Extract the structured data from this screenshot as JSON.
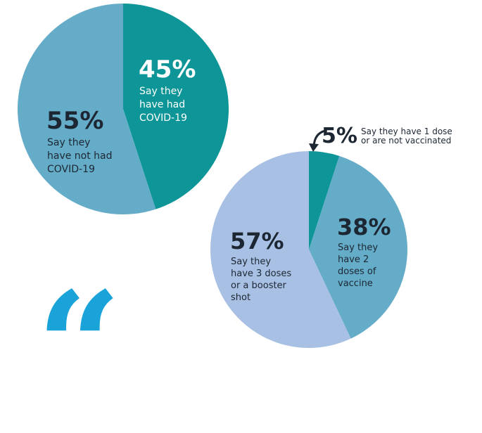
{
  "chart_data": [
    {
      "type": "pie",
      "slices": [
        {
          "label": "Say they have had COVID-19",
          "value": 45,
          "pct_text": "45%",
          "caption_lines": [
            "Say they",
            "have had",
            "COVID-19"
          ],
          "color": "#0e9597",
          "text_color": "#ffffff"
        },
        {
          "label": "Say they have not had COVID-19",
          "value": 55,
          "pct_text": "55%",
          "caption_lines": [
            "Say they",
            "have not had",
            "COVID-19"
          ],
          "color": "#65acc8",
          "text_color": "#1d2733"
        }
      ]
    },
    {
      "type": "pie",
      "slices": [
        {
          "label": "Say they have 1 dose or are not vaccinated",
          "value": 5,
          "pct_text": "5%",
          "caption_lines": [
            "Say they have 1 dose",
            "or are not vaccinated"
          ],
          "color": "#0e9597",
          "text_color": "#1d2733"
        },
        {
          "label": "Say they have 2 doses of vaccine",
          "value": 38,
          "pct_text": "38%",
          "caption_lines": [
            "Say they",
            "have 2",
            "doses of",
            "vaccine"
          ],
          "color": "#65acc8",
          "text_color": "#1d2733"
        },
        {
          "label": "Say they have 3 doses or a booster shot",
          "value": 57,
          "pct_text": "57%",
          "caption_lines": [
            "Say they",
            "have 3 doses",
            "or a booster",
            "shot"
          ],
          "color": "#a8c0e3",
          "text_color": "#1d2733"
        }
      ]
    }
  ],
  "decor": {
    "quote_mark": "“",
    "quote_color": "#1aa3d9",
    "arrow_color": "#1d2733"
  }
}
